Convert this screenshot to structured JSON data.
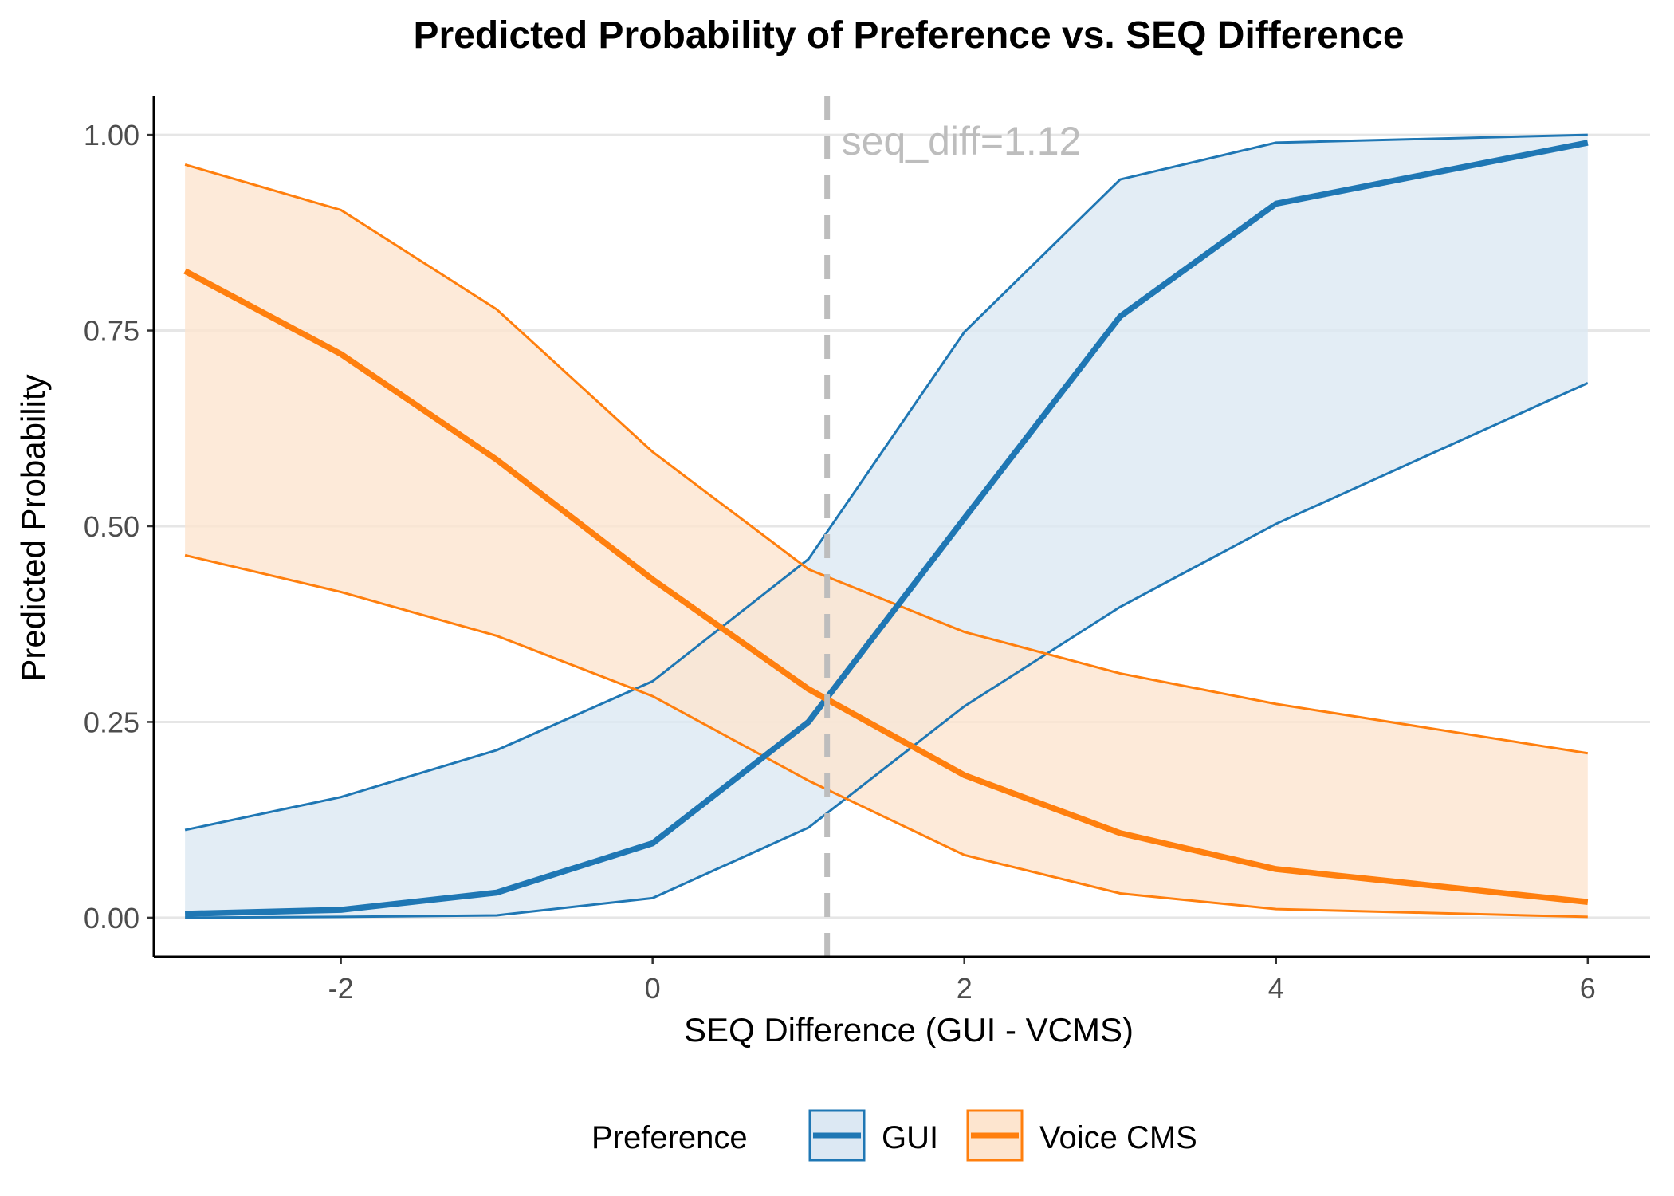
{
  "chart_data": {
    "type": "line",
    "title": "Predicted Probability of Preference vs. SEQ Difference",
    "xlabel": "SEQ Difference (GUI - VCMS)",
    "ylabel": "Predicted Probability",
    "xlim": [
      -3.2,
      6.4
    ],
    "ylim": [
      -0.05,
      1.05
    ],
    "x_ticks": [
      -2,
      0,
      2,
      4,
      6
    ],
    "x_tick_labels": [
      "-2",
      "0",
      "2",
      "4",
      "6"
    ],
    "y_ticks": [
      0,
      0.25,
      0.5,
      0.75,
      1.0
    ],
    "y_tick_labels": [
      "0.00",
      "0.25",
      "0.50",
      "0.75",
      "1.00"
    ],
    "grid": "horizontal major",
    "x": [
      -3,
      -2,
      -1,
      0,
      1,
      2,
      3,
      4,
      6
    ],
    "series": [
      {
        "name": "GUI",
        "color": "#1f77b4",
        "fill": "#dce8f3",
        "values": [
          0.005,
          0.01,
          0.032,
          0.095,
          0.25,
          0.51,
          0.768,
          0.912,
          0.99
        ],
        "lower": [
          0.0,
          0.001,
          0.003,
          0.025,
          0.115,
          0.27,
          0.397,
          0.503,
          0.683
        ],
        "upper": [
          0.112,
          0.154,
          0.214,
          0.302,
          0.458,
          0.748,
          0.943,
          0.99,
          1.0
        ]
      },
      {
        "name": "Voice CMS",
        "color": "#ff7f0e",
        "fill": "#fde5cf",
        "values": [
          0.826,
          0.72,
          0.585,
          0.432,
          0.292,
          0.182,
          0.108,
          0.062,
          0.02
        ],
        "lower": [
          0.463,
          0.416,
          0.36,
          0.283,
          0.175,
          0.08,
          0.031,
          0.011,
          0.001
        ],
        "upper": [
          0.962,
          0.904,
          0.777,
          0.595,
          0.445,
          0.365,
          0.312,
          0.273,
          0.21
        ]
      }
    ],
    "vline": {
      "x": 1.12,
      "label": "seq_diff=1.12",
      "color": "#bdbdbd",
      "style": "dashed"
    },
    "overlap_fill": "#e5dbd3",
    "legend": {
      "title": "Preference",
      "position": "bottom",
      "items": [
        "GUI",
        "Voice CMS"
      ]
    }
  }
}
